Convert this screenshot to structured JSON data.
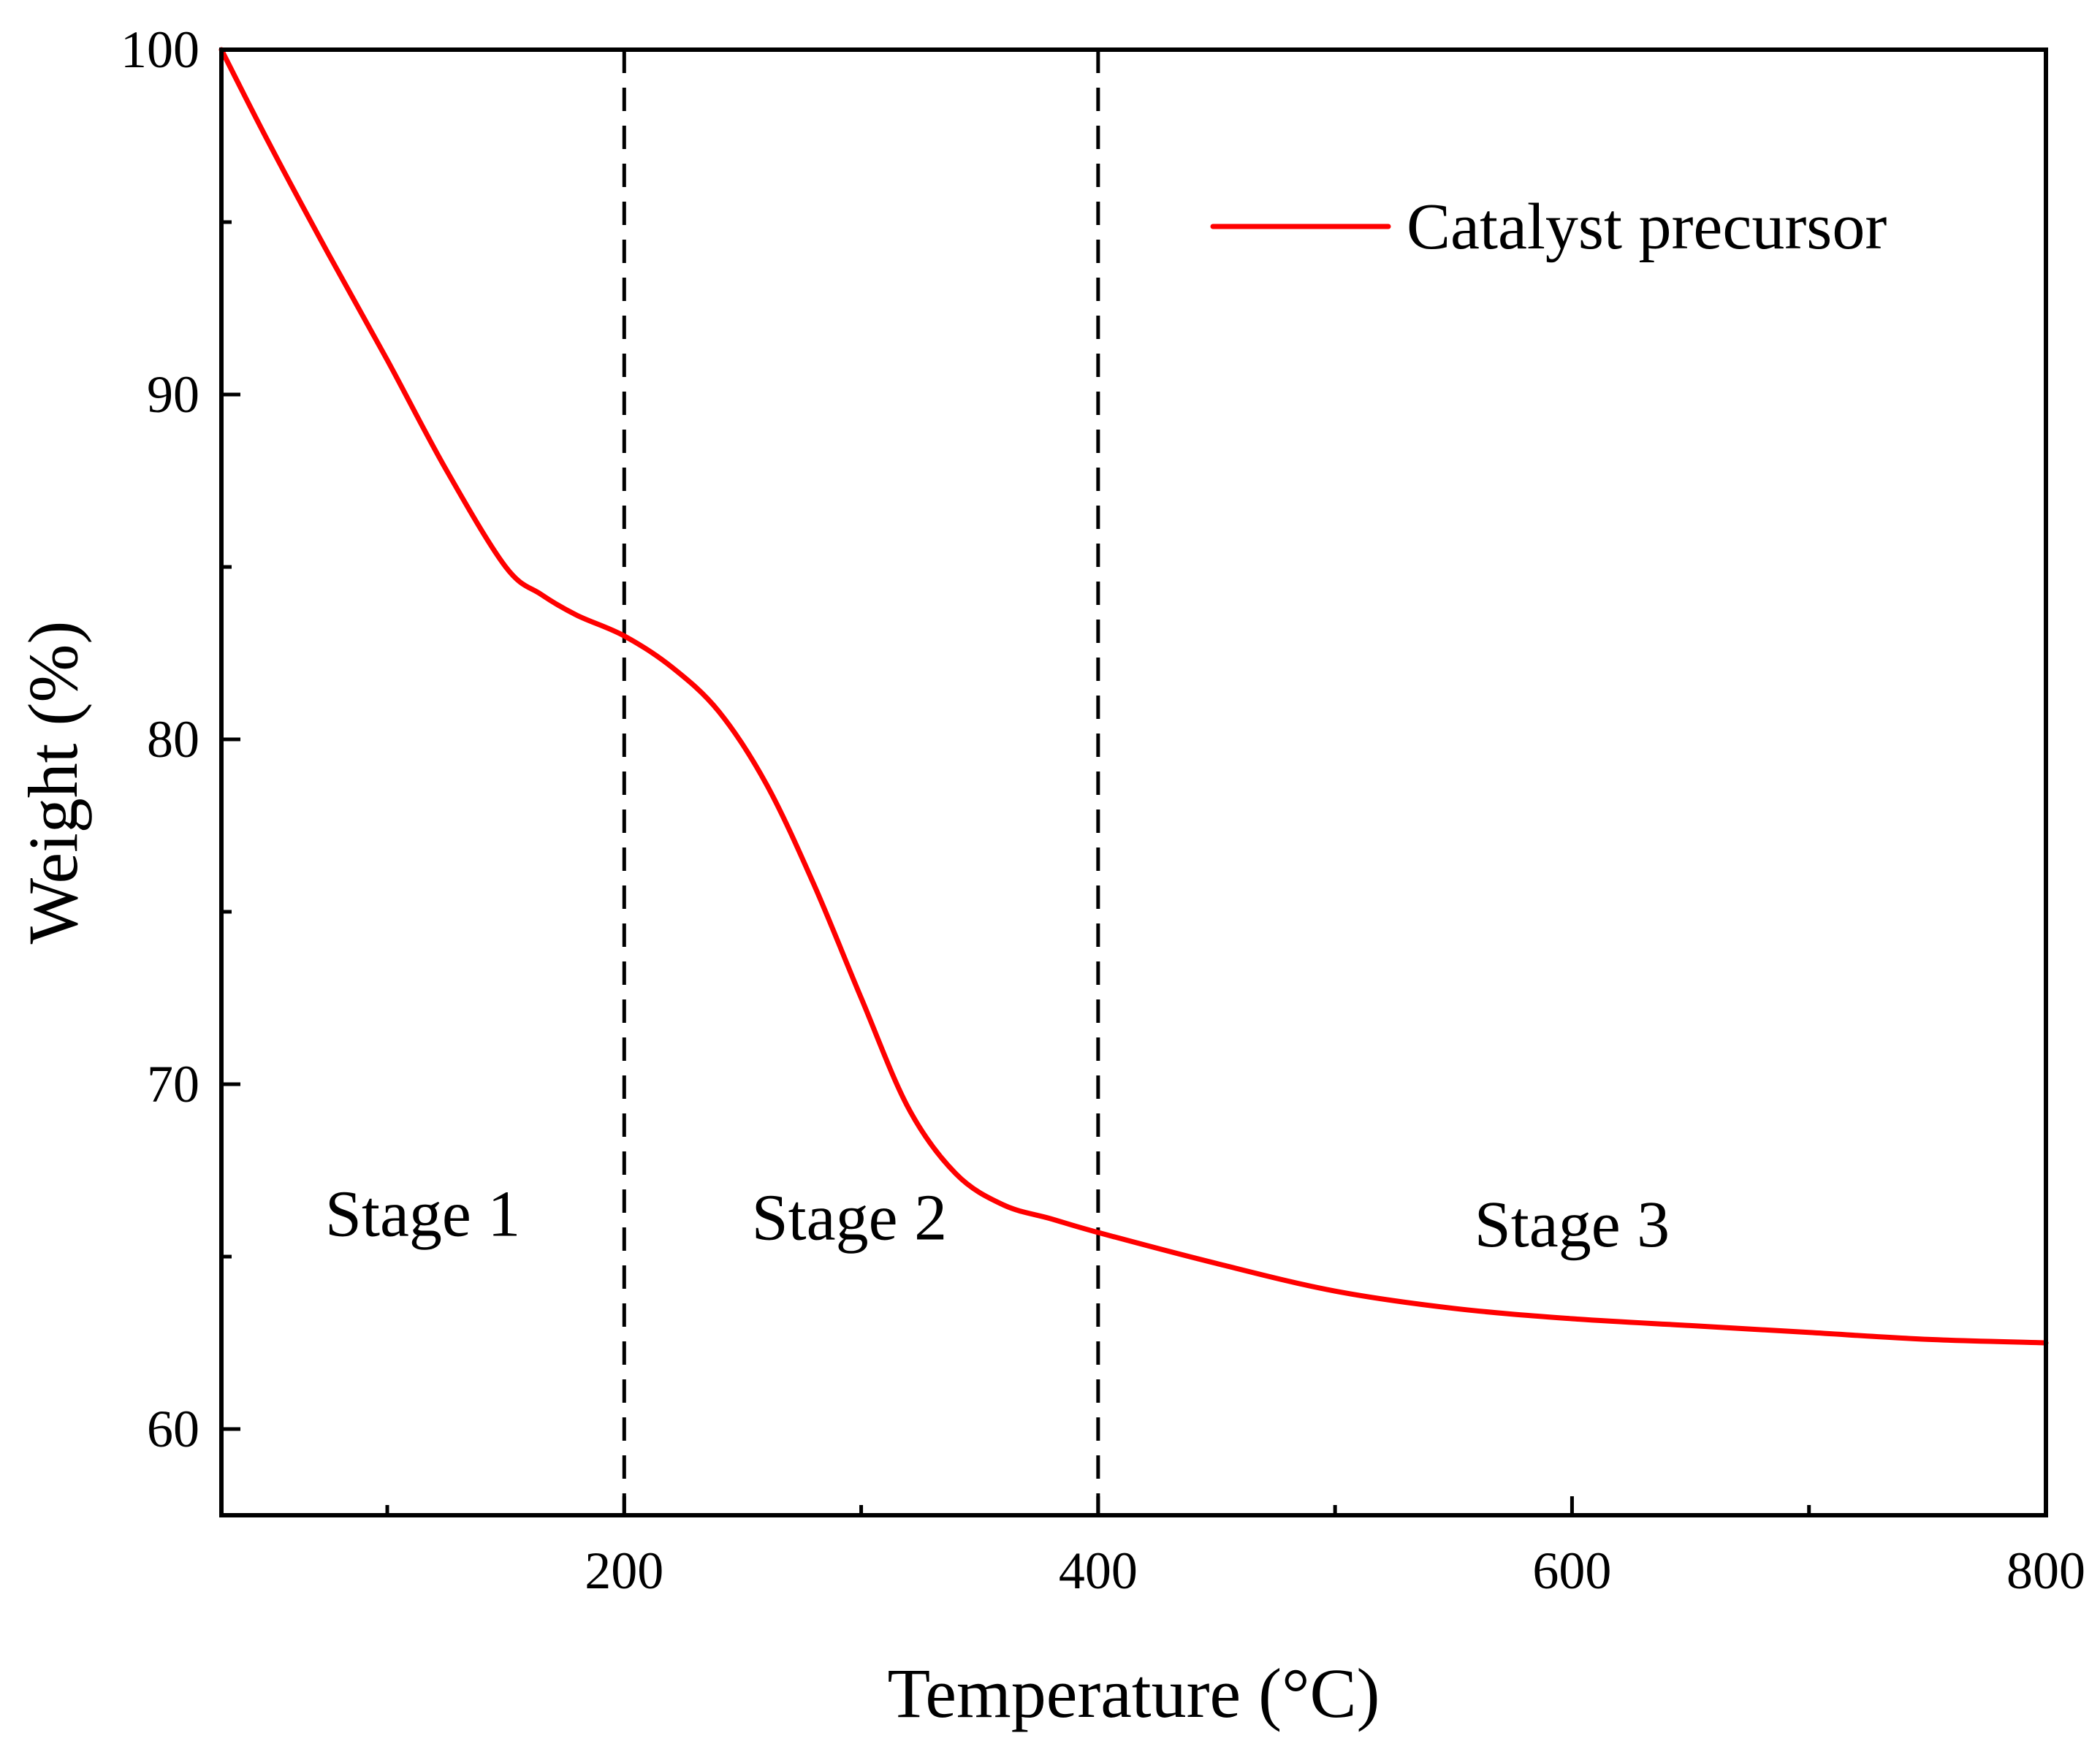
{
  "chart_data": {
    "type": "line",
    "title": "",
    "xlabel": "Temperature (°C)",
    "ylabel": "Weight (%)",
    "xlim": [
      30,
      800
    ],
    "ylim": [
      57.5,
      100
    ],
    "x_ticks": [
      200,
      400,
      600,
      800
    ],
    "x_tick_labels": [
      "200",
      "400",
      "600",
      "800"
    ],
    "x_minor_ticks": [
      100,
      300,
      500,
      700
    ],
    "y_ticks": [
      60,
      70,
      80,
      90,
      100
    ],
    "y_tick_labels": [
      "60",
      "70",
      "80",
      "90",
      "100"
    ],
    "y_minor_ticks": [
      65,
      75,
      85,
      95
    ],
    "grid": false,
    "legend": {
      "position": "top-right",
      "entries": [
        "Catalyst precursor"
      ]
    },
    "series": [
      {
        "name": "Catalyst precursor",
        "color": "#ff0000",
        "x": [
          30,
          50,
          75,
          100,
          125,
          150,
          165,
          180,
          200,
          220,
          240,
          260,
          280,
          300,
          320,
          340,
          360,
          380,
          400,
          450,
          500,
          550,
          600,
          650,
          700,
          750,
          800
        ],
        "y": [
          100,
          97.3,
          94.1,
          91.0,
          87.8,
          85.0,
          84.2,
          83.6,
          83.0,
          82.1,
          80.8,
          78.7,
          75.8,
          72.5,
          69.3,
          67.4,
          66.5,
          66.1,
          65.7,
          64.8,
          64.0,
          63.5,
          63.2,
          63.0,
          62.8,
          62.6,
          62.5
        ]
      }
    ],
    "vlines": [
      {
        "x": 200,
        "style": "dashed"
      },
      {
        "x": 400,
        "style": "dashed"
      }
    ],
    "annotations": [
      {
        "text": "Stage 1",
        "x": 115,
        "y": 65.6
      },
      {
        "text": "Stage 2",
        "x": 295,
        "y": 65.5
      },
      {
        "text": "Stage 3",
        "x": 600,
        "y": 65.3
      }
    ]
  }
}
